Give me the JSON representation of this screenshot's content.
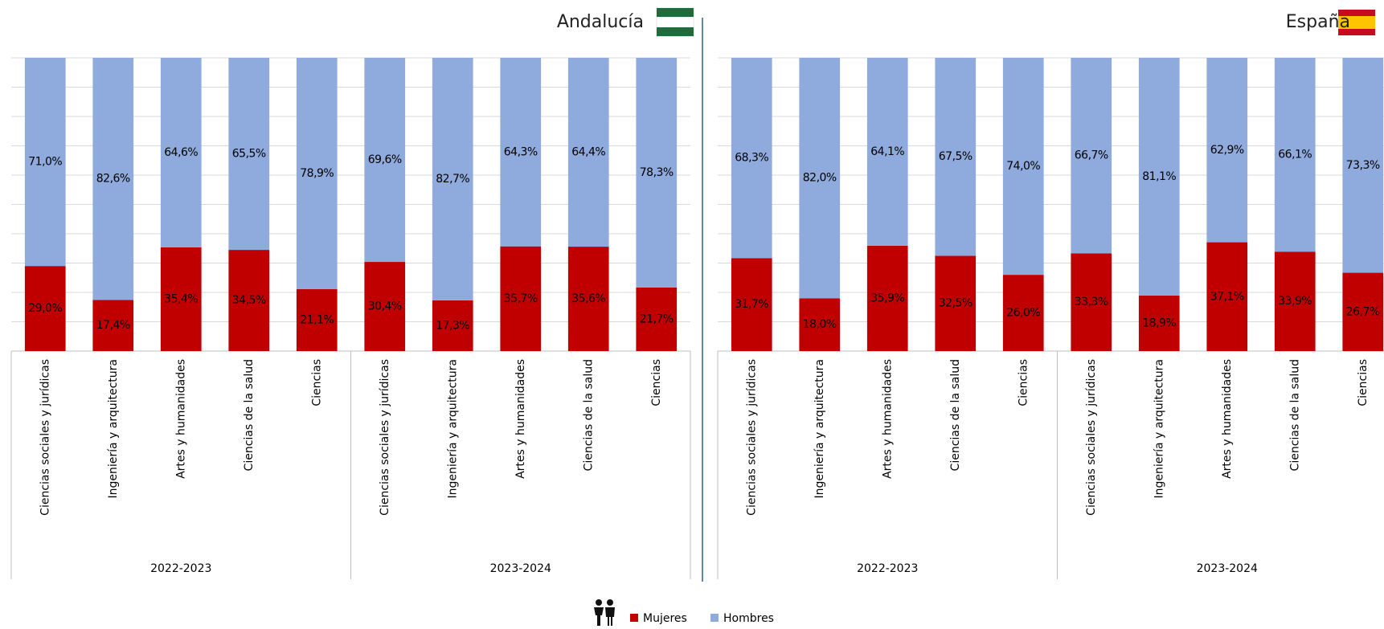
{
  "chart_data": [
    {
      "type": "bar",
      "stacked": true,
      "title": "Andalucía",
      "categories": [
        "Ciencias sociales y jurídicas",
        "Ingeniería y arquitectura",
        "Artes y humanidades",
        "Ciencias de la salud",
        "Ciencias",
        "Ciencias sociales y jurídicas",
        "Ingeniería y arquitectura",
        "Artes y humanidades",
        "Ciencias de la salud",
        "Ciencias"
      ],
      "groups": [
        "2022-2023",
        "2023-2024"
      ],
      "ylim": [
        0,
        100
      ],
      "yticks": [
        0,
        10,
        20,
        30,
        40,
        50,
        60,
        70,
        80,
        90,
        100
      ],
      "grid": true,
      "series": [
        {
          "name": "Mujeres",
          "color": "#c00000",
          "values": [
            29.0,
            17.4,
            35.4,
            34.5,
            21.1,
            30.4,
            17.3,
            35.7,
            35.6,
            21.7
          ],
          "value_labels": [
            "29,0%",
            "17,4%",
            "35,4%",
            "34,5%",
            "21,1%",
            "30,4%",
            "17,3%",
            "35,7%",
            "35,6%",
            "21,7%"
          ]
        },
        {
          "name": "Hombres",
          "color": "#8faadc",
          "values": [
            71.0,
            82.6,
            64.6,
            65.5,
            78.9,
            69.6,
            82.7,
            64.3,
            64.4,
            78.3
          ],
          "value_labels": [
            "71,0%",
            "82,6%",
            "64,6%",
            "65,5%",
            "78,9%",
            "69,6%",
            "82,7%",
            "64,3%",
            "64,4%",
            "78,3%"
          ]
        }
      ]
    },
    {
      "type": "bar",
      "stacked": true,
      "title": "España",
      "categories": [
        "Ciencias sociales y jurídicas",
        "Ingeniería y arquitectura",
        "Artes y humanidades",
        "Ciencias de la salud",
        "Ciencias",
        "Ciencias sociales y jurídicas",
        "Ingeniería y arquitectura",
        "Artes y humanidades",
        "Ciencias de la salud",
        "Ciencias"
      ],
      "groups": [
        "2022-2023",
        "2023-2024"
      ],
      "ylim": [
        0,
        100
      ],
      "yticks": [
        0,
        10,
        20,
        30,
        40,
        50,
        60,
        70,
        80,
        90,
        100
      ],
      "grid": true,
      "series": [
        {
          "color": "#c00000",
          "values": [
            31.7,
            18.0,
            35.9,
            32.5,
            26.0,
            33.3,
            18.9,
            37.1,
            33.9,
            26.7
          ],
          "value_labels": [
            "31,7%",
            "18,0%",
            "35,9%",
            "32,5%",
            "26,0%",
            "33,3%",
            "18,9%",
            "37,1%",
            "33,9%",
            "26,7%"
          ]
        },
        {
          "color": "#8faadc",
          "values": [
            68.3,
            82.0,
            64.1,
            67.5,
            74.0,
            66.7,
            81.1,
            62.9,
            66.1,
            73.3
          ],
          "value_labels": [
            "68,3%",
            "82,0%",
            "64,1%",
            "67,5%",
            "74,0%",
            "66,7%",
            "81,1%",
            "62,9%",
            "66,1%",
            "73,3%"
          ]
        }
      ]
    }
  ]
}
